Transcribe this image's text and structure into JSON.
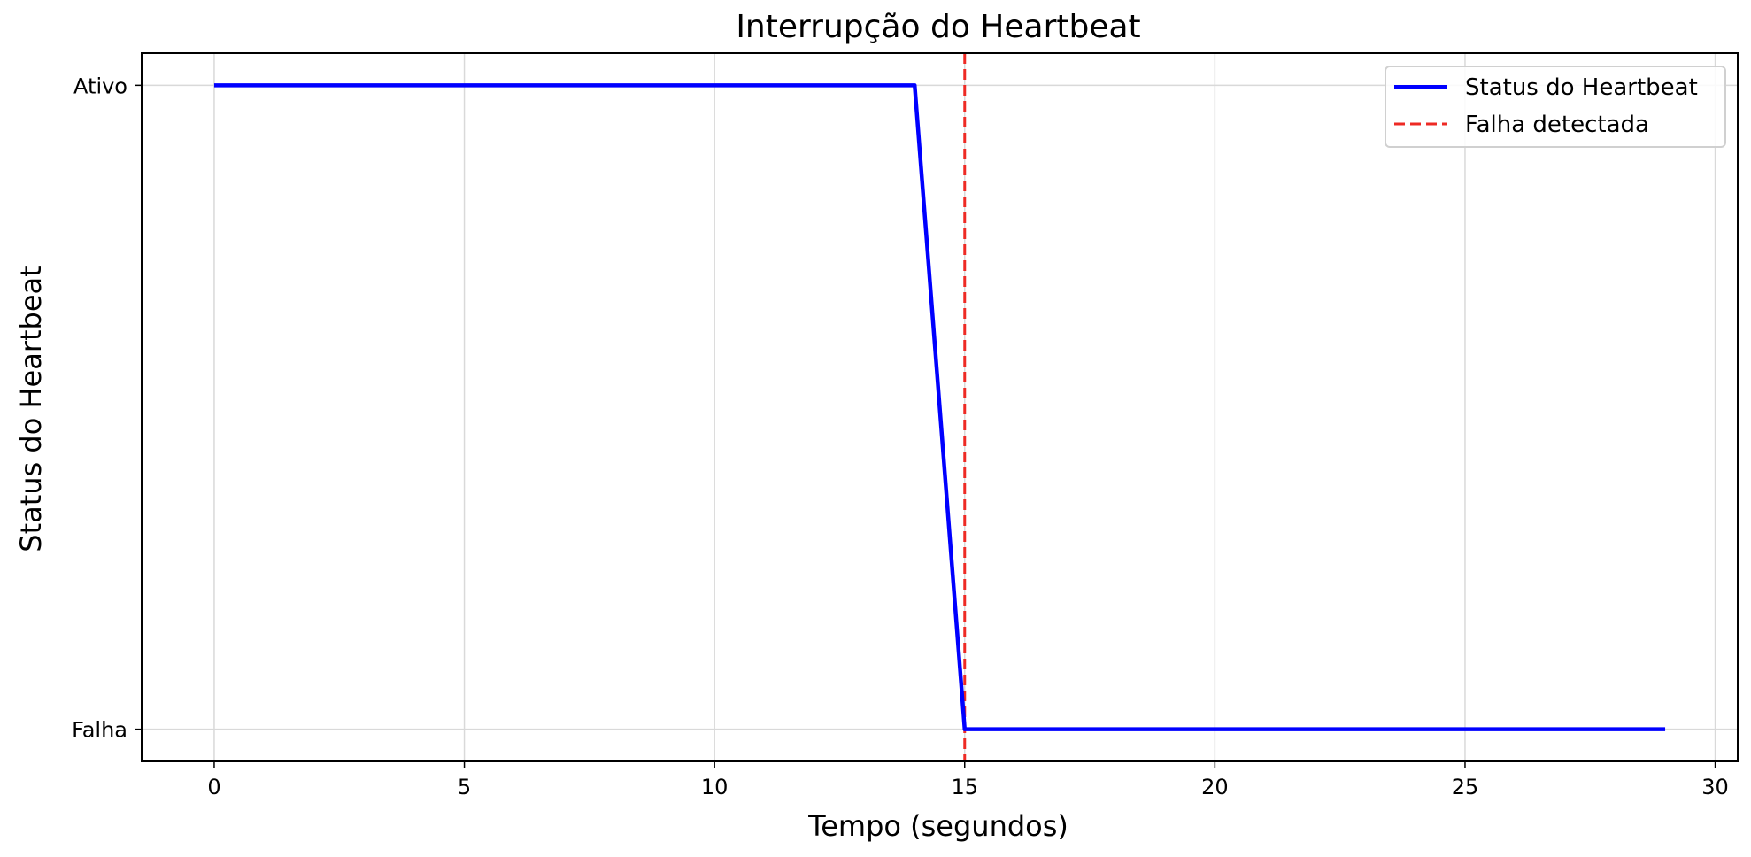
{
  "chart_data": {
    "type": "line",
    "title": "Interrupção do Heartbeat",
    "xlabel": "Tempo (segundos)",
    "ylabel": "Status do Heartbeat",
    "xlim": [
      -1.45,
      30.45
    ],
    "ylim": [
      -0.05,
      1.05
    ],
    "x_ticks": [
      0,
      5,
      10,
      15,
      20,
      25,
      30
    ],
    "x_tick_labels": [
      "0",
      "5",
      "10",
      "15",
      "20",
      "25",
      "30"
    ],
    "y_ticks": [
      0,
      1
    ],
    "y_tick_labels": [
      "Falha",
      "Ativo"
    ],
    "grid": true,
    "legend_position": "top-right",
    "series": [
      {
        "name": "Status do Heartbeat",
        "color": "#0000ff",
        "style": "solid",
        "x": [
          0,
          1,
          2,
          3,
          4,
          5,
          6,
          7,
          8,
          9,
          10,
          11,
          12,
          13,
          14,
          15,
          16,
          17,
          18,
          19,
          20,
          21,
          22,
          23,
          24,
          25,
          26,
          27,
          28,
          29
        ],
        "y": [
          1,
          1,
          1,
          1,
          1,
          1,
          1,
          1,
          1,
          1,
          1,
          1,
          1,
          1,
          1,
          0,
          0,
          0,
          0,
          0,
          0,
          0,
          0,
          0,
          0,
          0,
          0,
          0,
          0,
          0
        ]
      }
    ],
    "vlines": [
      {
        "name": "Falha detectada",
        "x": 15,
        "color": "#ee2a24",
        "style": "dashed"
      }
    ]
  }
}
